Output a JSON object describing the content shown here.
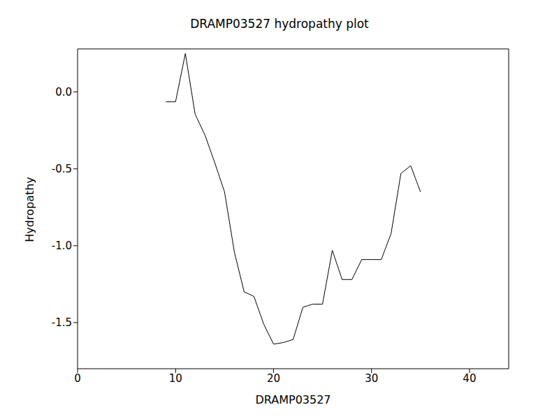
{
  "chart_data": {
    "type": "line",
    "title": "DRAMP03527 hydropathy plot",
    "x_label": "DRAMP03527",
    "y_label": "Hydropathy",
    "x": [
      9,
      10,
      11,
      12,
      13,
      14,
      15,
      16,
      17,
      18,
      19,
      20,
      21,
      22,
      23,
      24,
      25,
      26,
      27,
      28,
      29,
      30,
      31,
      32,
      33,
      34,
      35
    ],
    "values": [
      -0.064,
      -0.064,
      0.25,
      -0.145,
      -0.28,
      -0.46,
      -0.65,
      -1.04,
      -1.3,
      -1.33,
      -1.51,
      -1.64,
      -1.63,
      -1.61,
      -1.4,
      -1.38,
      -1.38,
      -1.03,
      -1.22,
      -1.22,
      -1.09,
      -1.09,
      -1.09,
      -0.92,
      -0.53,
      -0.48,
      -0.65
    ],
    "color": "#000000",
    "xlim": [
      0,
      44
    ],
    "ylim": [
      -1.8,
      0.28
    ],
    "xticks": [
      0,
      10,
      20,
      30,
      40
    ],
    "yticks": [
      -1.5,
      {
        "value": -1.0,
        "label": "-1.0"
      },
      -0.5,
      {
        "value": 0.0,
        "label": "0.0"
      }
    ],
    "grid": false
  }
}
